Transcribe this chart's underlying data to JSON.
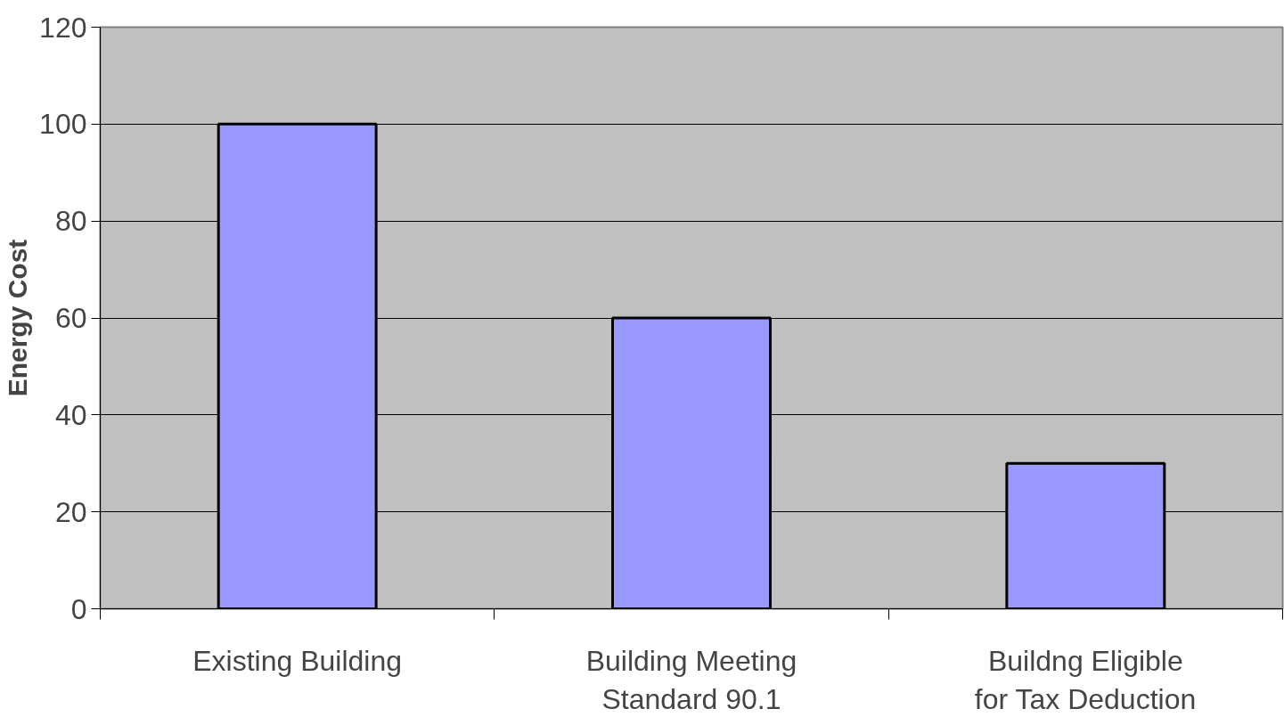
{
  "chart_data": {
    "type": "bar",
    "ylabel": "Energy Cost",
    "categories": [
      "Existing Building",
      "Building Meeting Standard 90.1",
      "Buildng Eligible for Tax Deduction"
    ],
    "values": [
      100,
      60,
      30
    ],
    "color": "#9999ff",
    "ylim": [
      0,
      120
    ],
    "yticks": [
      0,
      20,
      40,
      60,
      80,
      100,
      120
    ],
    "grid": "y"
  }
}
